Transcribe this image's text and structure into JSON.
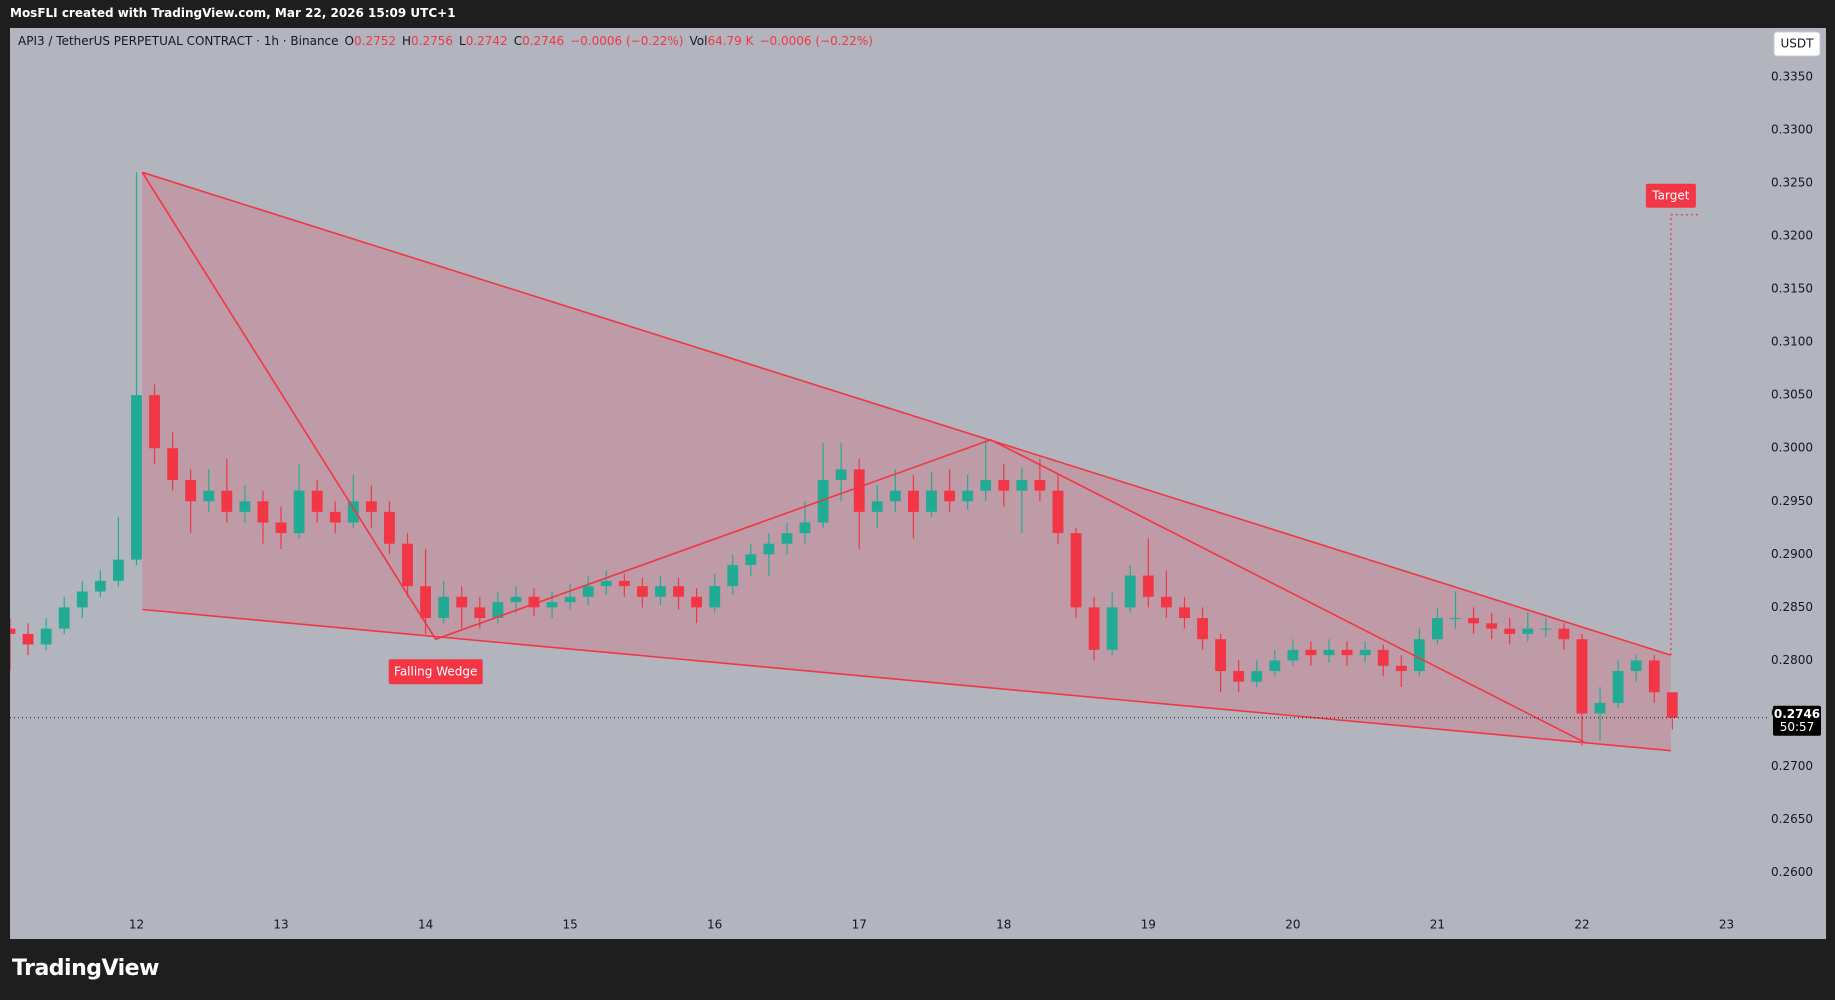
{
  "credit": "MosFLI created with TradingView.com, Mar 22, 2026 15:09 UTC+1",
  "logo": "TradingView",
  "chart_data": {
    "type": "candlestick",
    "symbol": "API3 / TetherUS PERPETUAL CONTRACT · 1h · Binance",
    "ohlc": [
      {
        "label": "O",
        "value": 0.2752
      },
      {
        "label": "H",
        "value": 0.2756
      },
      {
        "label": "L",
        "value": 0.2742
      },
      {
        "label": "C",
        "value": 0.2746
      }
    ],
    "change": "−0.0006 (−0.22%)",
    "volume_label": "Vol",
    "volume": "64.79 K",
    "volume_change": "−0.0006 (−0.22%)",
    "currency": "USDT",
    "last_price": 0.2746,
    "countdown": "50:57",
    "up_color": "#22ab94",
    "down_color": "#f23645",
    "background": "#b2b5be",
    "grid": false,
    "xlim": [
      11.125,
      23.28
    ],
    "xticks": [
      12,
      13,
      14,
      15,
      16,
      17,
      18,
      19,
      20,
      21,
      22,
      23
    ],
    "ylim": [
      0.2562,
      0.3396
    ],
    "yticks": [
      {
        "value": 0.26,
        "label": "0.2600"
      },
      {
        "value": 0.265,
        "label": "0.2650"
      },
      {
        "value": 0.27,
        "label": "0.2700"
      },
      {
        "value": 0.275,
        "label": "0.2750"
      },
      {
        "value": 0.28,
        "label": "0.2800"
      },
      {
        "value": 0.285,
        "label": "0.2850"
      },
      {
        "value": 0.29,
        "label": "0.2900"
      },
      {
        "value": 0.295,
        "label": "0.2950"
      },
      {
        "value": 0.3,
        "label": "0.3000"
      },
      {
        "value": 0.305,
        "label": "0.3050"
      },
      {
        "value": 0.31,
        "label": "0.3100"
      },
      {
        "value": 0.315,
        "label": "0.3150"
      },
      {
        "value": 0.32,
        "label": "0.3200"
      },
      {
        "value": 0.325,
        "label": "0.3250"
      },
      {
        "value": 0.33,
        "label": "0.3300"
      },
      {
        "value": 0.335,
        "label": "0.3350"
      }
    ],
    "x": [
      11.125,
      11.25,
      11.375,
      11.5,
      11.625,
      11.75,
      11.875,
      12,
      12.125,
      12.25,
      12.375,
      12.5,
      12.625,
      12.75,
      12.875,
      13,
      13.125,
      13.25,
      13.375,
      13.5,
      13.625,
      13.75,
      13.875,
      14,
      14.125,
      14.25,
      14.375,
      14.5,
      14.625,
      14.75,
      14.875,
      15,
      15.125,
      15.25,
      15.375,
      15.5,
      15.625,
      15.75,
      15.875,
      16,
      16.125,
      16.25,
      16.375,
      16.5,
      16.625,
      16.75,
      16.875,
      17,
      17.125,
      17.25,
      17.375,
      17.5,
      17.625,
      17.75,
      17.875,
      18,
      18.125,
      18.25,
      18.375,
      18.5,
      18.625,
      18.75,
      18.875,
      19,
      19.125,
      19.25,
      19.375,
      19.5,
      19.625,
      19.75,
      19.875,
      20,
      20.125,
      20.25,
      20.375,
      20.5,
      20.625,
      20.75,
      20.875,
      21,
      21.125,
      21.25,
      21.375,
      21.5,
      21.625,
      21.75,
      21.875,
      22,
      22.125,
      22.25,
      22.375,
      22.5,
      22.625
    ],
    "open": [
      0.283,
      0.2825,
      0.2815,
      0.283,
      0.285,
      0.2865,
      0.2875,
      0.2895,
      0.305,
      0.3,
      0.297,
      0.295,
      0.296,
      0.294,
      0.295,
      0.293,
      0.292,
      0.296,
      0.294,
      0.293,
      0.295,
      0.294,
      0.291,
      0.287,
      0.284,
      0.286,
      0.285,
      0.284,
      0.2855,
      0.286,
      0.285,
      0.2855,
      0.286,
      0.287,
      0.2875,
      0.287,
      0.286,
      0.287,
      0.286,
      0.285,
      0.287,
      0.289,
      0.29,
      0.291,
      0.292,
      0.293,
      0.297,
      0.298,
      0.294,
      0.295,
      0.296,
      0.294,
      0.296,
      0.295,
      0.296,
      0.297,
      0.296,
      0.297,
      0.296,
      0.292,
      0.285,
      0.281,
      0.285,
      0.288,
      0.286,
      0.285,
      0.284,
      0.282,
      0.279,
      0.278,
      0.279,
      0.28,
      0.281,
      0.2805,
      0.281,
      0.2805,
      0.281,
      0.2795,
      0.279,
      0.282,
      0.284,
      0.284,
      0.2835,
      0.283,
      0.2825,
      0.283,
      0.283,
      0.282,
      0.275,
      0.276,
      0.279,
      0.28,
      0.277
    ],
    "high": [
      0.284,
      0.2835,
      0.284,
      0.286,
      0.2875,
      0.2885,
      0.2935,
      0.326,
      0.306,
      0.3015,
      0.298,
      0.298,
      0.299,
      0.2965,
      0.296,
      0.2945,
      0.2985,
      0.297,
      0.295,
      0.2975,
      0.2965,
      0.295,
      0.292,
      0.2905,
      0.2875,
      0.287,
      0.286,
      0.2865,
      0.287,
      0.2868,
      0.2865,
      0.2872,
      0.288,
      0.2885,
      0.2882,
      0.2878,
      0.288,
      0.2878,
      0.2868,
      0.2882,
      0.29,
      0.291,
      0.292,
      0.293,
      0.295,
      0.3005,
      0.3005,
      0.299,
      0.2965,
      0.298,
      0.2975,
      0.2978,
      0.298,
      0.2975,
      0.3008,
      0.2985,
      0.2982,
      0.299,
      0.2975,
      0.2925,
      0.286,
      0.2865,
      0.289,
      0.2915,
      0.2885,
      0.286,
      0.285,
      0.2825,
      0.28,
      0.28,
      0.281,
      0.282,
      0.2818,
      0.282,
      0.2818,
      0.2818,
      0.2815,
      0.2805,
      0.283,
      0.285,
      0.2865,
      0.285,
      0.2845,
      0.284,
      0.2845,
      0.284,
      0.2835,
      0.2825,
      0.2775,
      0.28,
      0.2805,
      0.2805,
      0.277
    ],
    "low": [
      0.279,
      0.2805,
      0.281,
      0.2825,
      0.284,
      0.286,
      0.287,
      0.289,
      0.2985,
      0.296,
      0.292,
      0.294,
      0.293,
      0.293,
      0.291,
      0.2905,
      0.2915,
      0.293,
      0.292,
      0.2925,
      0.2925,
      0.29,
      0.286,
      0.2825,
      0.2835,
      0.283,
      0.283,
      0.2835,
      0.2845,
      0.2842,
      0.284,
      0.2848,
      0.2852,
      0.2862,
      0.286,
      0.285,
      0.2852,
      0.2848,
      0.2835,
      0.2845,
      0.2862,
      0.288,
      0.288,
      0.29,
      0.291,
      0.2925,
      0.295,
      0.2905,
      0.2925,
      0.294,
      0.2915,
      0.2935,
      0.294,
      0.2942,
      0.295,
      0.2945,
      0.292,
      0.295,
      0.291,
      0.284,
      0.28,
      0.2805,
      0.2845,
      0.285,
      0.284,
      0.283,
      0.281,
      0.277,
      0.277,
      0.2775,
      0.2785,
      0.2795,
      0.2795,
      0.2798,
      0.2795,
      0.2798,
      0.2785,
      0.2775,
      0.2785,
      0.2815,
      0.283,
      0.2825,
      0.282,
      0.2815,
      0.2818,
      0.2822,
      0.281,
      0.272,
      0.2725,
      0.2755,
      0.278,
      0.276,
      0.2735
    ],
    "close": [
      0.2825,
      0.2815,
      0.283,
      0.285,
      0.2865,
      0.2875,
      0.2895,
      0.305,
      0.3,
      0.297,
      0.295,
      0.296,
      0.294,
      0.295,
      0.293,
      0.292,
      0.296,
      0.294,
      0.293,
      0.295,
      0.294,
      0.291,
      0.287,
      0.284,
      0.286,
      0.285,
      0.284,
      0.2855,
      0.286,
      0.285,
      0.2855,
      0.286,
      0.287,
      0.2875,
      0.287,
      0.286,
      0.287,
      0.286,
      0.285,
      0.287,
      0.289,
      0.29,
      0.291,
      0.292,
      0.293,
      0.297,
      0.298,
      0.294,
      0.295,
      0.296,
      0.294,
      0.296,
      0.295,
      0.296,
      0.297,
      0.296,
      0.297,
      0.296,
      0.292,
      0.285,
      0.281,
      0.285,
      0.288,
      0.286,
      0.285,
      0.284,
      0.282,
      0.279,
      0.278,
      0.279,
      0.28,
      0.281,
      0.2805,
      0.281,
      0.2805,
      0.281,
      0.2795,
      0.279,
      0.282,
      0.284,
      0.284,
      0.2835,
      0.283,
      0.2825,
      0.283,
      0.283,
      0.282,
      0.275,
      0.276,
      0.279,
      0.28,
      0.277,
      0.2746
    ],
    "drawings": {
      "color": "#f23645",
      "wedge": {
        "upper": {
          "x": [
            12.04,
            22.615
          ],
          "y": [
            0.326,
            0.2805
          ]
        },
        "lower": {
          "x": [
            12.04,
            22.615
          ],
          "y": [
            0.2848,
            0.2715
          ]
        }
      },
      "zigzag": {
        "x": [
          12.04,
          14.07,
          17.91,
          22.03
        ],
        "y": [
          0.326,
          0.282,
          0.3008,
          0.2722
        ]
      },
      "target": {
        "x": 22.615,
        "y": 0.322
      }
    },
    "annotations": {
      "pattern": "Falling Wedge",
      "target": "Target"
    }
  }
}
